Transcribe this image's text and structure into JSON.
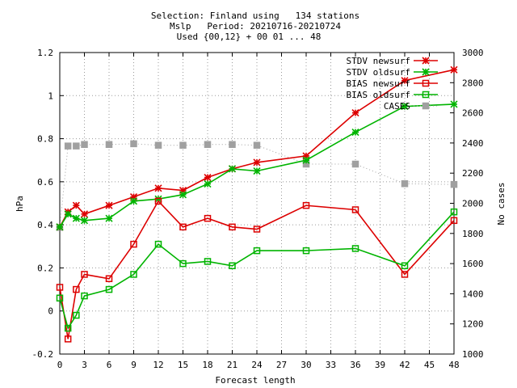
{
  "chart_data": {
    "type": "line",
    "title_lines": [
      "Selection: Finland using   134 stations",
      "Mslp   Period: 20210716-20210724",
      "Used {00,12} + 00 01 ... 48"
    ],
    "xlabel": "Forecast length",
    "ylabel": "hPa",
    "y2label": "No cases",
    "xlim": [
      0,
      48
    ],
    "ylim": [
      -0.2,
      1.2
    ],
    "y2lim": [
      1000,
      3000
    ],
    "x_ticks": [
      0,
      3,
      6,
      9,
      12,
      15,
      18,
      21,
      24,
      27,
      30,
      33,
      36,
      39,
      42,
      45,
      48
    ],
    "y_ticks": [
      -0.2,
      0,
      0.2,
      0.4,
      0.6,
      0.8,
      1,
      1.2
    ],
    "y_tick_labels": [
      "-0.2",
      "0",
      "0.2",
      "0.4",
      "0.6",
      "0.8",
      "1",
      "1.2"
    ],
    "y2_ticks": [
      1000,
      1200,
      1400,
      1600,
      1800,
      2000,
      2200,
      2400,
      2600,
      2800,
      3000
    ],
    "grid": true,
    "legend_position": "top-right",
    "series": [
      {
        "name": "STDV newsurf",
        "axis": "y",
        "color": "#dd0000",
        "marker": "star",
        "line": "solid",
        "x": [
          0,
          1,
          2,
          3,
          6,
          9,
          12,
          15,
          18,
          21,
          24,
          30,
          36,
          42,
          48
        ],
        "values": [
          0.39,
          0.46,
          0.49,
          0.45,
          0.49,
          0.53,
          0.57,
          0.56,
          0.62,
          0.66,
          0.69,
          0.72,
          0.92,
          1.07,
          1.12
        ]
      },
      {
        "name": "STDV oldsurf",
        "axis": "y",
        "color": "#00b400",
        "marker": "star",
        "line": "solid",
        "x": [
          0,
          1,
          2,
          3,
          6,
          9,
          12,
          15,
          18,
          21,
          24,
          30,
          36,
          42,
          48
        ],
        "values": [
          0.39,
          0.45,
          0.43,
          0.42,
          0.43,
          0.51,
          0.52,
          0.54,
          0.59,
          0.66,
          0.65,
          0.7,
          0.83,
          0.95,
          0.96
        ]
      },
      {
        "name": "BIAS newsurf",
        "axis": "y",
        "color": "#dd0000",
        "marker": "square",
        "line": "solid",
        "x": [
          0,
          1,
          2,
          3,
          6,
          9,
          12,
          15,
          18,
          21,
          24,
          30,
          36,
          42,
          48
        ],
        "values": [
          0.11,
          -0.13,
          0.1,
          0.17,
          0.15,
          0.31,
          0.51,
          0.39,
          0.43,
          0.39,
          0.38,
          0.49,
          0.47,
          0.17,
          0.42
        ]
      },
      {
        "name": "BIAS oldsurf",
        "axis": "y",
        "color": "#00b400",
        "marker": "square",
        "line": "solid",
        "x": [
          0,
          1,
          2,
          3,
          6,
          9,
          12,
          15,
          18,
          21,
          24,
          30,
          36,
          42,
          48
        ],
        "values": [
          0.06,
          -0.08,
          -0.02,
          0.07,
          0.1,
          0.17,
          0.31,
          0.22,
          0.23,
          0.21,
          0.28,
          0.28,
          0.29,
          0.21,
          0.46
        ]
      },
      {
        "name": "CASES",
        "axis": "y2",
        "color": "#a0a0a0",
        "marker": "filled-square",
        "line": "dotted",
        "x": [
          0,
          1,
          2,
          3,
          6,
          9,
          12,
          15,
          18,
          21,
          24,
          30,
          36,
          42,
          48
        ],
        "values": [
          1840,
          2380,
          2380,
          2390,
          2390,
          2395,
          2385,
          2385,
          2390,
          2390,
          2385,
          2260,
          2260,
          2130,
          2125
        ]
      }
    ]
  }
}
